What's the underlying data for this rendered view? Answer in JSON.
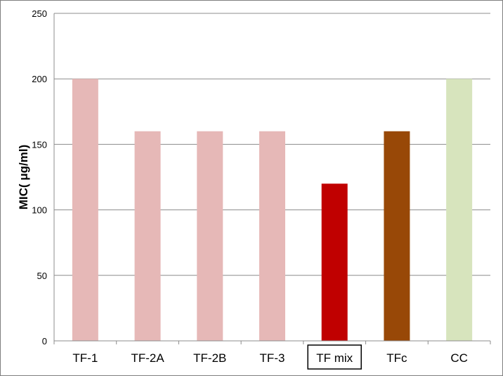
{
  "chart_data": {
    "type": "bar",
    "title": "",
    "xlabel": "",
    "ylabel": "MIC( μg/ml)",
    "categories": [
      "TF-1",
      "TF-2A",
      "TF-2B",
      "TF-3",
      "TF mix",
      "TFc",
      "CC"
    ],
    "values": [
      200,
      160,
      160,
      160,
      120,
      160,
      200
    ],
    "bar_colors": [
      "#e6b8b7",
      "#e6b8b7",
      "#e6b8b7",
      "#e6b8b7",
      "#c00000",
      "#984807",
      "#d7e4bd"
    ],
    "highlighted_category": "TF mix",
    "ylim": [
      0,
      250
    ],
    "yticks": [
      0,
      50,
      100,
      150,
      200,
      250
    ],
    "grid": true,
    "legend": "none"
  }
}
